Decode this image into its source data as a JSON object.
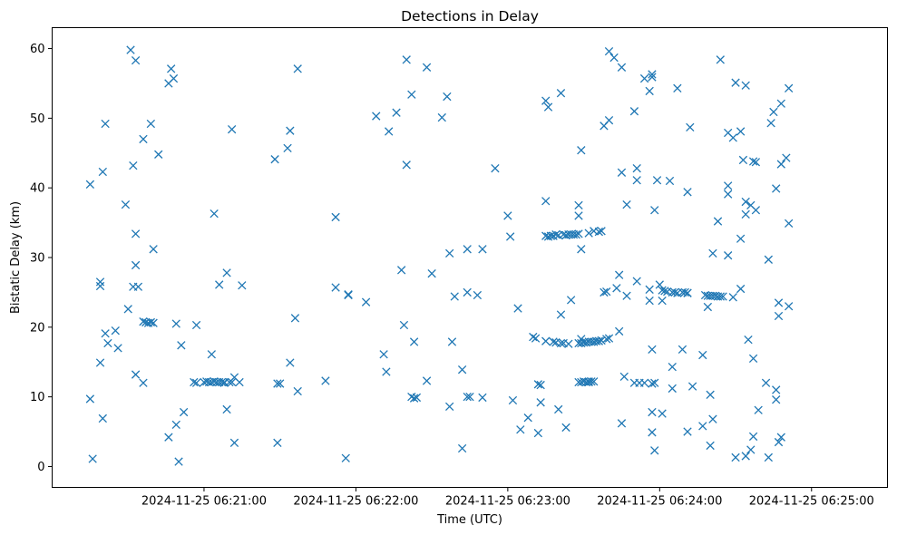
{
  "colors": {
    "marker": "#1f77b4",
    "axis": "#000000",
    "background": "#ffffff"
  },
  "chart_data": {
    "type": "scatter",
    "title": "Detections in Delay",
    "xlabel": "Time (UTC)",
    "ylabel": "Bistatic Delay (km)",
    "marker": "x",
    "grid": false,
    "xlim_seconds": [
      -30,
      300
    ],
    "ylim": [
      -3,
      63
    ],
    "x_unit": "seconds after 2024-11-25 06:20:30 UTC",
    "xticks": [
      {
        "value": 30,
        "label": "2024-11-25 06:21:00"
      },
      {
        "value": 90,
        "label": "2024-11-25 06:22:00"
      },
      {
        "value": 150,
        "label": "2024-11-25 06:23:00"
      },
      {
        "value": 210,
        "label": "2024-11-25 06:24:00"
      },
      {
        "value": 270,
        "label": "2024-11-25 06:25:00"
      }
    ],
    "yticks": [
      0,
      10,
      20,
      30,
      40,
      50,
      60
    ],
    "points": [
      [
        -15,
        40.5
      ],
      [
        -15,
        9.7
      ],
      [
        -14,
        1.1
      ],
      [
        -11,
        26.5
      ],
      [
        -11,
        25.9
      ],
      [
        -11,
        14.9
      ],
      [
        -10,
        6.9
      ],
      [
        -10,
        42.3
      ],
      [
        -9,
        19.1
      ],
      [
        -9,
        49.2
      ],
      [
        -8,
        17.7
      ],
      [
        -5,
        19.5
      ],
      [
        -4,
        17
      ],
      [
        -1,
        37.6
      ],
      [
        0,
        22.6
      ],
      [
        1,
        59.8
      ],
      [
        2,
        43.2
      ],
      [
        2,
        25.8
      ],
      [
        3,
        13.2
      ],
      [
        3,
        33.4
      ],
      [
        3,
        28.9
      ],
      [
        3,
        58.3
      ],
      [
        4,
        25.8
      ],
      [
        6,
        12
      ],
      [
        6,
        20.8
      ],
      [
        6,
        47
      ],
      [
        7,
        20.7
      ],
      [
        8,
        20.6
      ],
      [
        9,
        20.7
      ],
      [
        9,
        49.2
      ],
      [
        10,
        20.6
      ],
      [
        10,
        31.2
      ],
      [
        12,
        44.8
      ],
      [
        16,
        4.2
      ],
      [
        16,
        55
      ],
      [
        17,
        57.1
      ],
      [
        18,
        55.7
      ],
      [
        19,
        6
      ],
      [
        19,
        20.5
      ],
      [
        20,
        0.7
      ],
      [
        21,
        17.4
      ],
      [
        22,
        7.8
      ],
      [
        26,
        12.1
      ],
      [
        27,
        12
      ],
      [
        27,
        20.3
      ],
      [
        30,
        12.1
      ],
      [
        31,
        12.2
      ],
      [
        32,
        12.1
      ],
      [
        33,
        12.1
      ],
      [
        33,
        16.1
      ],
      [
        34,
        36.3
      ],
      [
        34,
        12.2
      ],
      [
        35,
        12.1
      ],
      [
        36,
        12.1
      ],
      [
        36,
        26.1
      ],
      [
        37,
        12.1
      ],
      [
        38,
        12
      ],
      [
        38,
        12.1
      ],
      [
        39,
        8.2
      ],
      [
        39,
        27.8
      ],
      [
        40,
        12.1
      ],
      [
        41,
        12.1
      ],
      [
        41,
        48.4
      ],
      [
        42,
        3.4
      ],
      [
        42,
        12.8
      ],
      [
        44,
        12.1
      ],
      [
        45,
        26
      ],
      [
        58,
        44.1
      ],
      [
        59,
        11.9
      ],
      [
        59,
        3.4
      ],
      [
        60,
        11.9
      ],
      [
        63,
        45.7
      ],
      [
        64,
        14.9
      ],
      [
        64,
        48.2
      ],
      [
        66,
        21.3
      ],
      [
        67,
        57.1
      ],
      [
        67,
        10.8
      ],
      [
        78,
        12.3
      ],
      [
        82,
        35.8
      ],
      [
        82,
        25.7
      ],
      [
        86,
        1.2
      ],
      [
        87,
        24.7
      ],
      [
        87,
        24.6
      ],
      [
        94,
        23.6
      ],
      [
        98,
        50.3
      ],
      [
        101,
        16.1
      ],
      [
        102,
        13.6
      ],
      [
        103,
        48.1
      ],
      [
        106,
        50.8
      ],
      [
        108,
        28.2
      ],
      [
        109,
        20.3
      ],
      [
        110,
        43.3
      ],
      [
        110,
        58.4
      ],
      [
        112,
        53.4
      ],
      [
        112,
        10
      ],
      [
        113,
        9.8
      ],
      [
        113,
        17.9
      ],
      [
        114,
        9.9
      ],
      [
        118,
        57.3
      ],
      [
        118,
        12.3
      ],
      [
        120,
        27.7
      ],
      [
        124,
        50.1
      ],
      [
        126,
        53.1
      ],
      [
        127,
        30.6
      ],
      [
        127,
        8.6
      ],
      [
        128,
        17.9
      ],
      [
        129,
        24.4
      ],
      [
        132,
        13.9
      ],
      [
        132,
        2.6
      ],
      [
        134,
        31.2
      ],
      [
        134,
        25
      ],
      [
        134,
        10
      ],
      [
        135,
        10
      ],
      [
        138,
        24.6
      ],
      [
        140,
        31.2
      ],
      [
        140,
        9.9
      ],
      [
        145,
        42.8
      ],
      [
        150,
        36
      ],
      [
        151,
        33
      ],
      [
        152,
        9.5
      ],
      [
        154,
        22.7
      ],
      [
        155,
        5.3
      ],
      [
        158,
        7
      ],
      [
        160,
        18.6
      ],
      [
        161,
        18.4
      ],
      [
        162,
        4.8
      ],
      [
        162,
        11.8
      ],
      [
        163,
        9.2
      ],
      [
        163,
        11.7
      ],
      [
        165,
        52.5
      ],
      [
        165,
        38.1
      ],
      [
        165,
        33.1
      ],
      [
        165,
        18
      ],
      [
        166,
        33
      ],
      [
        166,
        51.6
      ],
      [
        167,
        33.1
      ],
      [
        168,
        17.9
      ],
      [
        168,
        33.1
      ],
      [
        169,
        17.8
      ],
      [
        169,
        33.3
      ],
      [
        170,
        33.2
      ],
      [
        170,
        8.2
      ],
      [
        171,
        53.6
      ],
      [
        171,
        17.7
      ],
      [
        171,
        21.8
      ],
      [
        172,
        33.3
      ],
      [
        172,
        17.7
      ],
      [
        173,
        5.6
      ],
      [
        173,
        33.2
      ],
      [
        174,
        17.6
      ],
      [
        174,
        33.3
      ],
      [
        175,
        33.3
      ],
      [
        175,
        23.9
      ],
      [
        176,
        33.3
      ],
      [
        177,
        33.3
      ],
      [
        178,
        12.1
      ],
      [
        178,
        37.5
      ],
      [
        178,
        33.4
      ],
      [
        178,
        17.7
      ],
      [
        178,
        36
      ],
      [
        179,
        18.3
      ],
      [
        179,
        45.4
      ],
      [
        179,
        31.2
      ],
      [
        179,
        17.7
      ],
      [
        179,
        12.1
      ],
      [
        180,
        17.8
      ],
      [
        180,
        12.2
      ],
      [
        181,
        12.1
      ],
      [
        181,
        17.8
      ],
      [
        182,
        33.5
      ],
      [
        182,
        17.9
      ],
      [
        182,
        12.1
      ],
      [
        182,
        12.2
      ],
      [
        183,
        12.2
      ],
      [
        183,
        17.9
      ],
      [
        184,
        33.8
      ],
      [
        184,
        12.2
      ],
      [
        184,
        17.9
      ],
      [
        185,
        18
      ],
      [
        186,
        33.7
      ],
      [
        186,
        18
      ],
      [
        187,
        18.1
      ],
      [
        187,
        33.8
      ],
      [
        188,
        48.9
      ],
      [
        188,
        25
      ],
      [
        189,
        18.3
      ],
      [
        189,
        25.1
      ],
      [
        190,
        59.6
      ],
      [
        190,
        18.4
      ],
      [
        190,
        49.7
      ],
      [
        192,
        58.7
      ],
      [
        193,
        25.6
      ],
      [
        194,
        27.5
      ],
      [
        194,
        19.4
      ],
      [
        195,
        6.2
      ],
      [
        195,
        42.2
      ],
      [
        195,
        57.3
      ],
      [
        196,
        12.9
      ],
      [
        197,
        37.6
      ],
      [
        197,
        24.5
      ],
      [
        200,
        51
      ],
      [
        200,
        12
      ],
      [
        201,
        42.8
      ],
      [
        201,
        41.1
      ],
      [
        201,
        26.6
      ],
      [
        202,
        12
      ],
      [
        204,
        12
      ],
      [
        204,
        55.7
      ],
      [
        206,
        23.8
      ],
      [
        206,
        25.4
      ],
      [
        206,
        53.9
      ],
      [
        207,
        55.9
      ],
      [
        207,
        56.3
      ],
      [
        207,
        16.8
      ],
      [
        207,
        11.9
      ],
      [
        207,
        7.8
      ],
      [
        207,
        4.9
      ],
      [
        208,
        12
      ],
      [
        208,
        2.3
      ],
      [
        208,
        36.8
      ],
      [
        209,
        41.1
      ],
      [
        210,
        26.1
      ],
      [
        211,
        7.6
      ],
      [
        211,
        25.3
      ],
      [
        211,
        23.8
      ],
      [
        212,
        25.2
      ],
      [
        213,
        25.1
      ],
      [
        214,
        41
      ],
      [
        215,
        25
      ],
      [
        215,
        14.3
      ],
      [
        215,
        11.2
      ],
      [
        216,
        25
      ],
      [
        217,
        24.9
      ],
      [
        217,
        54.3
      ],
      [
        219,
        16.8
      ],
      [
        219,
        25
      ],
      [
        220,
        25
      ],
      [
        221,
        24.9
      ],
      [
        221,
        24.9
      ],
      [
        221,
        39.4
      ],
      [
        221,
        5
      ],
      [
        222,
        48.7
      ],
      [
        223,
        11.5
      ],
      [
        227,
        16
      ],
      [
        227,
        5.8
      ],
      [
        228,
        24.6
      ],
      [
        229,
        24.5
      ],
      [
        229,
        22.9
      ],
      [
        230,
        24.5
      ],
      [
        230,
        10.3
      ],
      [
        230,
        3
      ],
      [
        231,
        30.6
      ],
      [
        231,
        24.5
      ],
      [
        231,
        6.8
      ],
      [
        232,
        24.5
      ],
      [
        233,
        24.4
      ],
      [
        233,
        35.2
      ],
      [
        234,
        24.4
      ],
      [
        234,
        58.4
      ],
      [
        235,
        24.4
      ],
      [
        237,
        47.9
      ],
      [
        237,
        40.3
      ],
      [
        237,
        39.1
      ],
      [
        237,
        30.3
      ],
      [
        239,
        24.3
      ],
      [
        239,
        47.2
      ],
      [
        240,
        55.1
      ],
      [
        240,
        1.3
      ],
      [
        242,
        48.1
      ],
      [
        242,
        32.7
      ],
      [
        242,
        25.5
      ],
      [
        243,
        44
      ],
      [
        244,
        54.7
      ],
      [
        244,
        38
      ],
      [
        244,
        36.2
      ],
      [
        244,
        1.5
      ],
      [
        245,
        18.2
      ],
      [
        246,
        37.5
      ],
      [
        246,
        2.4
      ],
      [
        247,
        15.5
      ],
      [
        247,
        4.3
      ],
      [
        247,
        43.8
      ],
      [
        248,
        43.7
      ],
      [
        248,
        36.8
      ],
      [
        249,
        8.1
      ],
      [
        252,
        12
      ],
      [
        253,
        29.7
      ],
      [
        253,
        1.3
      ],
      [
        254,
        49.3
      ],
      [
        255,
        50.9
      ],
      [
        256,
        11
      ],
      [
        256,
        9.6
      ],
      [
        256,
        39.9
      ],
      [
        257,
        21.6
      ],
      [
        257,
        23.5
      ],
      [
        257,
        3.5
      ],
      [
        258,
        52.1
      ],
      [
        258,
        43.4
      ],
      [
        258,
        4.2
      ],
      [
        260,
        44.3
      ],
      [
        261,
        54.3
      ],
      [
        261,
        34.9
      ],
      [
        261,
        23
      ]
    ]
  }
}
